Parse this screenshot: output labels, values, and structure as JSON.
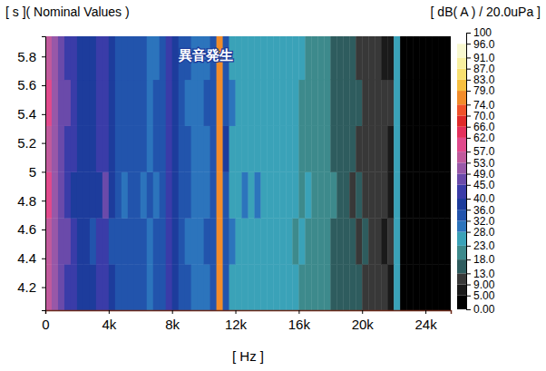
{
  "chart_data": {
    "type": "heatmap",
    "ylabel": "[ s ]( Nominal Values )",
    "xlabel": "[ Hz ]",
    "annotations": [
      {
        "text": "異音発生",
        "x": 10150,
        "y": 5.8
      }
    ],
    "xlim": [
      0,
      25600
    ],
    "ylim": [
      4.04,
      5.94
    ],
    "xticks": [
      0,
      {
        "value": 4000,
        "label": "4k"
      },
      {
        "value": 8000,
        "label": "8k"
      },
      {
        "value": 12000,
        "label": "12k"
      },
      {
        "value": 16000,
        "label": "16k"
      },
      {
        "value": 20000,
        "label": "20k"
      },
      {
        "value": 24000,
        "label": "24k"
      }
    ],
    "yticks": [
      4.2,
      4.4,
      4.6,
      4.8,
      5,
      5.2,
      5.4,
      5.6,
      5.8
    ],
    "x_bins": [
      0,
      400,
      800,
      1200,
      1600,
      2000,
      2400,
      2800,
      3200,
      3600,
      4000,
      4400,
      4800,
      5200,
      5600,
      6000,
      6400,
      6800,
      7200,
      7600,
      8000,
      8400,
      8800,
      9200,
      9600,
      10000,
      10400,
      10800,
      11200,
      11600,
      12000,
      12400,
      12800,
      13200,
      13600,
      14000,
      14400,
      14800,
      15200,
      15600,
      16000,
      16400,
      16800,
      17200,
      17600,
      18000,
      18400,
      18800,
      19200,
      19600,
      20000,
      20400,
      20800,
      21200,
      21600,
      22000,
      22400,
      22800,
      23200,
      23600,
      24000,
      24400,
      24800,
      25200,
      25600
    ],
    "y_bins": [
      4.04,
      4.36,
      4.68,
      5.0,
      5.32,
      5.64,
      5.94
    ],
    "z": [
      [
        56,
        50,
        46,
        44,
        40,
        38,
        38,
        36,
        40,
        44,
        36,
        34,
        32,
        33,
        34,
        32,
        31,
        32,
        34,
        42,
        38,
        33,
        32,
        30,
        30,
        31,
        33,
        76,
        34,
        27,
        26,
        27,
        26,
        27,
        26,
        25,
        25,
        24,
        24,
        23,
        22,
        22,
        21,
        20,
        19,
        17,
        15,
        14,
        13,
        13,
        12,
        11,
        10,
        9,
        8,
        24,
        2,
        1,
        1,
        1,
        1,
        1,
        1,
        1
      ],
      [
        54,
        51,
        45,
        45,
        41,
        37,
        39,
        35,
        41,
        43,
        35,
        35,
        33,
        32,
        33,
        33,
        30,
        33,
        33,
        43,
        37,
        34,
        31,
        31,
        29,
        32,
        32,
        75,
        35,
        28,
        27,
        26,
        27,
        26,
        27,
        24,
        26,
        23,
        25,
        22,
        23,
        21,
        22,
        19,
        20,
        16,
        16,
        13,
        14,
        12,
        13,
        10,
        11,
        8,
        9,
        25,
        2,
        1,
        0,
        1,
        0,
        1,
        0,
        1
      ],
      [
        57,
        49,
        47,
        43,
        39,
        39,
        37,
        37,
        39,
        45,
        37,
        33,
        31,
        34,
        35,
        31,
        32,
        31,
        35,
        41,
        39,
        32,
        33,
        29,
        31,
        30,
        34,
        77,
        33,
        26,
        27,
        28,
        25,
        28,
        25,
        26,
        24,
        25,
        23,
        24,
        21,
        23,
        20,
        21,
        18,
        18,
        14,
        15,
        12,
        14,
        11,
        12,
        9,
        10,
        7,
        23,
        3,
        1,
        1,
        0,
        1,
        1,
        0,
        0
      ],
      [
        55,
        52,
        46,
        44,
        42,
        38,
        36,
        36,
        42,
        44,
        36,
        34,
        33,
        32,
        34,
        32,
        31,
        32,
        33,
        42,
        38,
        35,
        32,
        30,
        30,
        31,
        33,
        76,
        36,
        27,
        26,
        27,
        27,
        26,
        26,
        25,
        25,
        24,
        23,
        24,
        22,
        22,
        21,
        20,
        18,
        17,
        15,
        14,
        13,
        12,
        12,
        11,
        10,
        9,
        8,
        24,
        2,
        2,
        1,
        1,
        1,
        0,
        1,
        1
      ],
      [
        58,
        50,
        48,
        45,
        40,
        37,
        38,
        36,
        40,
        44,
        37,
        35,
        32,
        33,
        33,
        32,
        30,
        32,
        34,
        44,
        38,
        33,
        31,
        30,
        30,
        32,
        33,
        78,
        34,
        28,
        26,
        27,
        26,
        27,
        25,
        25,
        26,
        24,
        24,
        23,
        22,
        21,
        21,
        20,
        19,
        16,
        15,
        14,
        13,
        13,
        11,
        11,
        10,
        9,
        9,
        25,
        2,
        1,
        1,
        1,
        1,
        1,
        1,
        0
      ],
      [
        56,
        51,
        46,
        44,
        41,
        38,
        37,
        37,
        41,
        43,
        36,
        34,
        33,
        33,
        34,
        32,
        31,
        31,
        34,
        43,
        37,
        34,
        32,
        31,
        30,
        31,
        32,
        77,
        35,
        27,
        27,
        26,
        26,
        27,
        26,
        25,
        24,
        25,
        24,
        23,
        23,
        22,
        20,
        20,
        19,
        17,
        16,
        14,
        13,
        12,
        12,
        11,
        10,
        8,
        8,
        24,
        2,
        1,
        1,
        1,
        0,
        1,
        1,
        1
      ]
    ],
    "colorbar": {
      "label": "[ dB( A ) / 20.0uPa ]",
      "range": [
        0,
        100
      ],
      "ticks": [
        {
          "value": 0,
          "label": "0.00"
        },
        {
          "value": 5,
          "label": "5.00"
        },
        {
          "value": 9,
          "label": "9.00"
        },
        {
          "value": 13,
          "label": "13.0"
        },
        {
          "value": 18,
          "label": "18.0"
        },
        {
          "value": 23,
          "label": "23.0"
        },
        {
          "value": 28,
          "label": "28.0"
        },
        {
          "value": 32,
          "label": "32.0"
        },
        {
          "value": 36,
          "label": "36.0"
        },
        {
          "value": 40,
          "label": "40.0"
        },
        {
          "value": 45,
          "label": "45.0"
        },
        {
          "value": 49,
          "label": "49.0"
        },
        {
          "value": 53,
          "label": "53.0"
        },
        {
          "value": 57,
          "label": "57.0"
        },
        {
          "value": 62,
          "label": "62.0"
        },
        {
          "value": 66,
          "label": "66.0"
        },
        {
          "value": 70,
          "label": "70.0"
        },
        {
          "value": 74,
          "label": "74.0"
        },
        {
          "value": 79,
          "label": "79.0"
        },
        {
          "value": 83,
          "label": "83.0"
        },
        {
          "value": 87,
          "label": "87.0"
        },
        {
          "value": 91,
          "label": "91.0"
        },
        {
          "value": 96,
          "label": "96.0"
        },
        100
      ],
      "colors": [
        "#000000",
        "#1a1a1a",
        "#383838",
        "#2e5c5e",
        "#3d8a8c",
        "#3aa2b8",
        "#2c74bc",
        "#2254ac",
        "#1d3c9c",
        "#3a3ca8",
        "#6a4aaa",
        "#9858a8",
        "#c05a9c",
        "#e04a8c",
        "#e4305c",
        "#e02a2a",
        "#f0522a",
        "#f28c2a",
        "#f8c040",
        "#f8e070",
        "#f8f0a0",
        "#f8f8d0",
        "#ffffff"
      ]
    }
  }
}
